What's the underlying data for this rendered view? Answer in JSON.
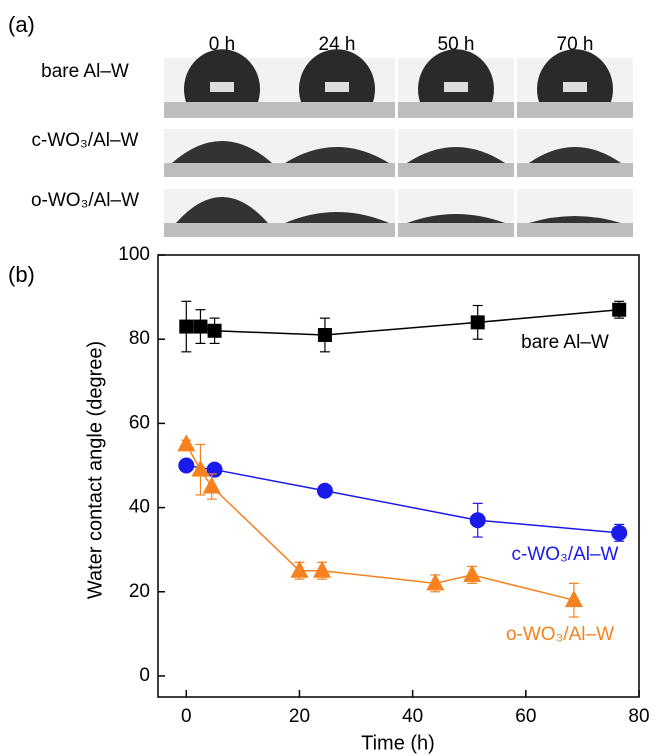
{
  "panel_a": {
    "label": "(a)",
    "times": [
      "0 h",
      "24 h",
      "50 h",
      "70 h"
    ],
    "samples": [
      "bare Al–W",
      "c-WO₃/Al–W",
      "o-WO₃/Al–W"
    ]
  },
  "chart_data": {
    "type": "line",
    "panel_label": "(b)",
    "xlabel": "Time (h)",
    "ylabel": "Water contact angle (degree)",
    "xlim": [
      -5,
      80
    ],
    "xticks": [
      0,
      20,
      40,
      60,
      80
    ],
    "ylim": [
      -5,
      100
    ],
    "yticks": [
      0,
      20,
      40,
      60,
      80,
      100
    ],
    "series": [
      {
        "name": "bare Al–W",
        "color": "#000000",
        "marker": "square",
        "x": [
          0,
          2.5,
          5,
          24.5,
          51.5,
          76.5
        ],
        "values": [
          83,
          83,
          82,
          81,
          84,
          87
        ],
        "errors": [
          6,
          4,
          3,
          4,
          4,
          2
        ]
      },
      {
        "name": "c-WO₃/Al–W",
        "color": "#1a1aeb",
        "marker": "circle",
        "x": [
          0,
          5,
          24.5,
          51.5,
          76.5
        ],
        "values": [
          50,
          49,
          44,
          37,
          34
        ],
        "errors": [
          1,
          1,
          1,
          4,
          2
        ]
      },
      {
        "name": "o-WO₃/Al–W",
        "color": "#f5821f",
        "marker": "triangle",
        "x": [
          0,
          2.5,
          4.5,
          20,
          24,
          44,
          50.5,
          68.5
        ],
        "values": [
          55,
          49,
          45,
          25,
          25,
          22,
          24,
          18
        ],
        "errors": [
          1,
          6,
          3,
          2,
          2,
          2,
          2,
          4
        ]
      }
    ]
  }
}
